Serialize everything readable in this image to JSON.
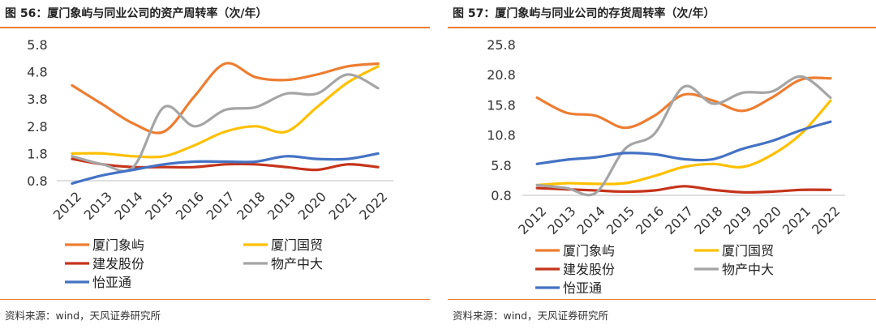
{
  "figures": [
    {
      "title": "图 56：厦门象屿与同业公司的资产周转率（次/年）",
      "source": "资料来源：wind，天风证券研究所"
    },
    {
      "title": "图 57：厦门象屿与同业公司的存货周转率（次/年）",
      "source": "资料来源：wind，天风证券研究所"
    }
  ],
  "colors": {
    "厦门象屿": "#ed7d31",
    "厦门国贸": "#ffc000",
    "建发股份": "#c5341b",
    "物产中大": "#a5a5a5",
    "怡亚通": "#4472c4",
    "rule": "#ec7c30"
  },
  "chart_data": [
    {
      "type": "line",
      "x": [
        "2012",
        "2013",
        "2014",
        "2015",
        "2016",
        "2017",
        "2018",
        "2019",
        "2020",
        "2021",
        "2022"
      ],
      "ylim": [
        0.8,
        5.8
      ],
      "yticks": [
        "5.8",
        "4.8",
        "3.8",
        "2.8",
        "1.8",
        "0.8"
      ],
      "grid": false,
      "legend_position": "bottom",
      "series": [
        {
          "name": "厦门象屿",
          "values": [
            4.3,
            3.6,
            2.9,
            2.6,
            3.9,
            5.1,
            4.6,
            4.5,
            4.7,
            5.0,
            5.1
          ]
        },
        {
          "name": "厦门国贸",
          "values": [
            1.8,
            1.8,
            1.7,
            1.7,
            2.1,
            2.6,
            2.8,
            2.6,
            3.5,
            4.4,
            5.0
          ]
        },
        {
          "name": "建发股份",
          "values": [
            1.6,
            1.4,
            1.3,
            1.3,
            1.3,
            1.4,
            1.4,
            1.3,
            1.2,
            1.4,
            1.3
          ]
        },
        {
          "name": "物产中大",
          "values": [
            1.7,
            1.4,
            1.3,
            3.5,
            2.8,
            3.4,
            3.5,
            4.0,
            4.0,
            4.7,
            4.2
          ]
        },
        {
          "name": "怡亚通",
          "values": [
            0.7,
            1.0,
            1.2,
            1.4,
            1.5,
            1.5,
            1.5,
            1.7,
            1.6,
            1.6,
            1.8
          ]
        }
      ]
    },
    {
      "type": "line",
      "x": [
        "2012",
        "2013",
        "2014",
        "2015",
        "2016",
        "2017",
        "2018",
        "2019",
        "2020",
        "2021",
        "2022"
      ],
      "ylim": [
        0.8,
        25.8
      ],
      "yticks": [
        "25.8",
        "20.8",
        "15.8",
        "10.8",
        "5.8",
        "0.8"
      ],
      "grid": false,
      "legend_position": "bottom",
      "series": [
        {
          "name": "厦门象屿",
          "values": [
            17.0,
            14.5,
            14.0,
            12.0,
            14.0,
            17.5,
            16.5,
            14.8,
            17.0,
            20.0,
            20.2
          ]
        },
        {
          "name": "厦门国贸",
          "values": [
            2.5,
            2.8,
            2.7,
            2.8,
            4.0,
            5.5,
            6.0,
            5.5,
            7.5,
            11.0,
            16.5
          ]
        },
        {
          "name": "建发股份",
          "values": [
            2.0,
            1.8,
            1.6,
            1.4,
            1.6,
            2.3,
            1.7,
            1.3,
            1.4,
            1.7,
            1.7
          ]
        },
        {
          "name": "物产中大",
          "values": [
            2.5,
            2.0,
            1.2,
            8.5,
            11.0,
            18.8,
            16.0,
            17.8,
            18.0,
            20.5,
            17.0
          ]
        },
        {
          "name": "怡亚通",
          "values": [
            6.0,
            6.7,
            7.1,
            7.8,
            7.6,
            6.8,
            6.8,
            8.5,
            9.8,
            11.6,
            13.0
          ]
        }
      ]
    }
  ]
}
